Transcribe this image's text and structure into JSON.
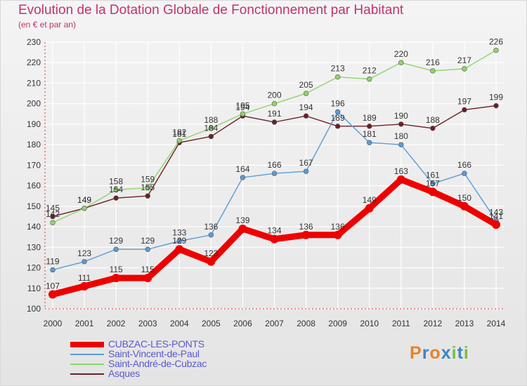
{
  "header": {
    "title": "Evolution de la Dotation Globale de Fonctionnement par Habitant",
    "subtitle": "(en € et par an)"
  },
  "logo": {
    "text": "Proxiti",
    "letters": [
      "P",
      "r",
      "o",
      "x",
      "i",
      "t",
      "i"
    ],
    "colors": [
      "#e8822a",
      "#3c86c8",
      "#e8822a",
      "#3c86c8",
      "#7cbf3a",
      "#3c86c8",
      "#7cbf3a"
    ]
  },
  "chart_data": {
    "type": "line",
    "title": "Evolution de la Dotation Globale de Fonctionnement par Habitant",
    "subtitle": "(en € et par an)",
    "xlabel": "",
    "ylabel": "",
    "ylim": [
      100,
      230
    ],
    "yticks": [
      100,
      110,
      120,
      130,
      140,
      150,
      160,
      170,
      180,
      190,
      200,
      210,
      220,
      230
    ],
    "grid": true,
    "legend_position": "bottom-left",
    "categories": [
      "2000",
      "2001",
      "2002",
      "2003",
      "2004",
      "2005",
      "2006",
      "2007",
      "2008",
      "2009",
      "2010",
      "2011",
      "2012",
      "2013",
      "2014"
    ],
    "series": [
      {
        "name": "CUBZAC-LES-PONTS",
        "color": "#ee0000",
        "values": [
          107,
          111,
          115,
          115,
          129,
          123,
          139,
          134,
          136,
          136,
          149,
          163,
          157,
          150,
          141
        ]
      },
      {
        "name": "Saint-Vincent-de-Paul",
        "color": "#5b9bd5",
        "values": [
          119,
          123,
          129,
          129,
          133,
          136,
          164,
          166,
          167,
          196,
          181,
          180,
          161,
          166,
          143
        ]
      },
      {
        "name": "Saint-André-de-Cubzac",
        "color": "#8fd46b",
        "values": [
          142,
          149,
          158,
          159,
          182,
          188,
          195,
          200,
          205,
          213,
          212,
          220,
          216,
          217,
          226
        ]
      },
      {
        "name": "Asques",
        "color": "#6b1f25",
        "values": [
          145,
          149,
          154,
          155,
          181,
          184,
          194,
          191,
          194,
          189,
          189,
          190,
          188,
          197,
          199
        ]
      }
    ],
    "point_labels": [
      [
        "107",
        "111",
        "115",
        "115",
        "129",
        "123",
        "139",
        "134",
        "136",
        "136",
        "149",
        "163",
        "157",
        "150",
        "141"
      ],
      [
        "119",
        "123",
        "129",
        "129",
        "133",
        "136",
        "164",
        "166",
        "167",
        "196",
        "181",
        "180",
        "161",
        "166",
        "143"
      ],
      [
        "142",
        "149",
        "158",
        "159",
        "182",
        "188",
        "195",
        "200",
        "205",
        "213",
        "212",
        "220",
        "216",
        "217",
        "226"
      ],
      [
        "145",
        "149",
        "154",
        "155",
        "181",
        "184",
        "194",
        "191",
        "194",
        "189",
        "189",
        "190",
        "188",
        "197",
        "199"
      ]
    ]
  }
}
